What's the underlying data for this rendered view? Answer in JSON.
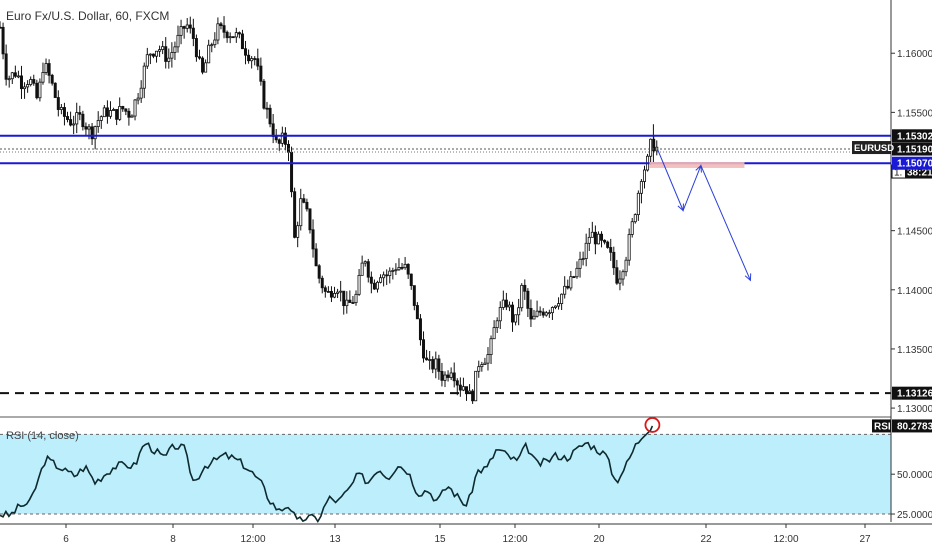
{
  "header": {
    "title": "Euro Fx/U.S. Dollar, 60, FXCM"
  },
  "rsi_panel": {
    "title": "RSI (14, close)",
    "tag_label": "RSI",
    "tag_value": "80.2783"
  },
  "colors": {
    "candle": "#111111",
    "resistance_line": "#1a1ad6",
    "arrow": "#2b3fd8",
    "target_zone": "#f2b9b9",
    "rsi_fill": "#bdeefc",
    "rsi_line": "#0e2a2e",
    "circle": "#d61a1a",
    "price_tag": "#111111",
    "level_tag": "#1a1ad6"
  },
  "chart_data": [
    {
      "type": "candlestick",
      "title": "Euro Fx/U.S. Dollar, 60, FXCM",
      "symbol": "EURUSD",
      "ylim": [
        1.1295,
        1.1645
      ],
      "y_ticks": [
        "1.16000",
        "1.15500",
        "1.14500",
        "1.14000",
        "1.13500",
        "1.13000"
      ],
      "x_ticks": [
        "6",
        "8",
        "12:00",
        "13",
        "15",
        "12:00",
        "20",
        "22",
        "12:00",
        "27"
      ],
      "price_path": [
        {
          "t": 0,
          "p": 1.1622
        },
        {
          "t": 7,
          "p": 1.1578
        },
        {
          "t": 16,
          "p": 1.1584
        },
        {
          "t": 22,
          "p": 1.1575
        },
        {
          "t": 30,
          "p": 1.1578
        },
        {
          "t": 38,
          "p": 1.156
        },
        {
          "t": 44,
          "p": 1.1592
        },
        {
          "t": 52,
          "p": 1.1575
        },
        {
          "t": 60,
          "p": 1.155
        },
        {
          "t": 72,
          "p": 1.1542
        },
        {
          "t": 82,
          "p": 1.1546
        },
        {
          "t": 92,
          "p": 1.1532
        },
        {
          "t": 100,
          "p": 1.1545
        },
        {
          "t": 108,
          "p": 1.1551
        },
        {
          "t": 116,
          "p": 1.1548
        },
        {
          "t": 124,
          "p": 1.1553
        },
        {
          "t": 132,
          "p": 1.1548
        },
        {
          "t": 140,
          "p": 1.1568
        },
        {
          "t": 150,
          "p": 1.16
        },
        {
          "t": 160,
          "p": 1.1605
        },
        {
          "t": 170,
          "p": 1.1595
        },
        {
          "t": 180,
          "p": 1.1612
        },
        {
          "t": 188,
          "p": 1.1625
        },
        {
          "t": 196,
          "p": 1.1612
        },
        {
          "t": 204,
          "p": 1.158
        },
        {
          "t": 212,
          "p": 1.1605
        },
        {
          "t": 220,
          "p": 1.162
        },
        {
          "t": 230,
          "p": 1.1618
        },
        {
          "t": 240,
          "p": 1.1614
        },
        {
          "t": 250,
          "p": 1.16
        },
        {
          "t": 258,
          "p": 1.1595
        },
        {
          "t": 266,
          "p": 1.156
        },
        {
          "t": 274,
          "p": 1.154
        },
        {
          "t": 280,
          "p": 1.152
        },
        {
          "t": 286,
          "p": 1.1528
        },
        {
          "t": 292,
          "p": 1.152
        },
        {
          "t": 297,
          "p": 1.144
        },
        {
          "t": 304,
          "p": 1.1475
        },
        {
          "t": 312,
          "p": 1.146
        },
        {
          "t": 320,
          "p": 1.1415
        },
        {
          "t": 330,
          "p": 1.1395
        },
        {
          "t": 340,
          "p": 1.1405
        },
        {
          "t": 350,
          "p": 1.1385
        },
        {
          "t": 360,
          "p": 1.1395
        },
        {
          "t": 368,
          "p": 1.143
        },
        {
          "t": 376,
          "p": 1.1402
        },
        {
          "t": 384,
          "p": 1.1415
        },
        {
          "t": 392,
          "p": 1.1412
        },
        {
          "t": 400,
          "p": 1.142
        },
        {
          "t": 410,
          "p": 1.1418
        },
        {
          "t": 418,
          "p": 1.1392
        },
        {
          "t": 424,
          "p": 1.136
        },
        {
          "t": 432,
          "p": 1.1335
        },
        {
          "t": 440,
          "p": 1.1337
        },
        {
          "t": 448,
          "p": 1.1325
        },
        {
          "t": 456,
          "p": 1.1335
        },
        {
          "t": 464,
          "p": 1.1318
        },
        {
          "t": 470,
          "p": 1.132
        },
        {
          "t": 476,
          "p": 1.1306
        },
        {
          "t": 484,
          "p": 1.134
        },
        {
          "t": 494,
          "p": 1.1345
        },
        {
          "t": 502,
          "p": 1.1378
        },
        {
          "t": 512,
          "p": 1.139
        },
        {
          "t": 520,
          "p": 1.137
        },
        {
          "t": 528,
          "p": 1.1405
        },
        {
          "t": 536,
          "p": 1.1372
        },
        {
          "t": 546,
          "p": 1.1382
        },
        {
          "t": 556,
          "p": 1.1385
        },
        {
          "t": 566,
          "p": 1.1395
        },
        {
          "t": 574,
          "p": 1.1402
        },
        {
          "t": 582,
          "p": 1.1415
        },
        {
          "t": 590,
          "p": 1.143
        },
        {
          "t": 596,
          "p": 1.1448
        },
        {
          "t": 606,
          "p": 1.144
        },
        {
          "t": 616,
          "p": 1.143
        },
        {
          "t": 624,
          "p": 1.1408
        },
        {
          "t": 632,
          "p": 1.1428
        },
        {
          "t": 640,
          "p": 1.146
        },
        {
          "t": 648,
          "p": 1.1498
        },
        {
          "t": 654,
          "p": 1.1508
        },
        {
          "t": 658,
          "p": 1.1525
        },
        {
          "t": 661,
          "p": 1.1522
        },
        {
          "t": 664,
          "p": 1.1519
        }
      ],
      "lines": {
        "resistance_upper": 1.15302,
        "resistance_lower": 1.1507,
        "current_price": 1.1519,
        "support_dashed": 1.13126
      },
      "price_labels": [
        "1.15302",
        "1.15190",
        "1.15070",
        "1.13126"
      ],
      "symbol_label": "EURUSD",
      "countdown_label": "38:21",
      "countdown_prefix": "1.",
      "target_zone": {
        "t_start": 656,
        "t_end": 752,
        "p_top": 1.1508,
        "p_bottom": 1.1503
      },
      "projection_path": [
        {
          "t": 664,
          "p": 1.1519
        },
        {
          "t": 690,
          "p": 1.1467
        },
        {
          "t": 708,
          "p": 1.1505
        },
        {
          "t": 758,
          "p": 1.1408
        }
      ]
    },
    {
      "type": "line",
      "title": "RSI (14, close)",
      "ylim": [
        20,
        84
      ],
      "y_ticks": [
        "50.0000",
        "25.0000"
      ],
      "bands": [
        75,
        25
      ],
      "current_value": 80.2783,
      "values_path": [
        {
          "t": 0,
          "v": 25
        },
        {
          "t": 10,
          "v": 24
        },
        {
          "t": 20,
          "v": 30
        },
        {
          "t": 30,
          "v": 32
        },
        {
          "t": 38,
          "v": 45
        },
        {
          "t": 46,
          "v": 60
        },
        {
          "t": 56,
          "v": 56
        },
        {
          "t": 66,
          "v": 52
        },
        {
          "t": 76,
          "v": 49
        },
        {
          "t": 86,
          "v": 55
        },
        {
          "t": 96,
          "v": 45
        },
        {
          "t": 106,
          "v": 50
        },
        {
          "t": 116,
          "v": 55
        },
        {
          "t": 126,
          "v": 56
        },
        {
          "t": 136,
          "v": 55
        },
        {
          "t": 146,
          "v": 70
        },
        {
          "t": 156,
          "v": 65
        },
        {
          "t": 166,
          "v": 60
        },
        {
          "t": 176,
          "v": 68
        },
        {
          "t": 186,
          "v": 66
        },
        {
          "t": 196,
          "v": 44
        },
        {
          "t": 206,
          "v": 55
        },
        {
          "t": 216,
          "v": 58
        },
        {
          "t": 226,
          "v": 62
        },
        {
          "t": 236,
          "v": 60
        },
        {
          "t": 246,
          "v": 56
        },
        {
          "t": 256,
          "v": 50
        },
        {
          "t": 264,
          "v": 44
        },
        {
          "t": 272,
          "v": 34
        },
        {
          "t": 282,
          "v": 27
        },
        {
          "t": 292,
          "v": 31
        },
        {
          "t": 300,
          "v": 20
        },
        {
          "t": 310,
          "v": 23
        },
        {
          "t": 322,
          "v": 22
        },
        {
          "t": 332,
          "v": 35
        },
        {
          "t": 342,
          "v": 33
        },
        {
          "t": 352,
          "v": 40
        },
        {
          "t": 362,
          "v": 50
        },
        {
          "t": 372,
          "v": 45
        },
        {
          "t": 382,
          "v": 54
        },
        {
          "t": 392,
          "v": 48
        },
        {
          "t": 402,
          "v": 56
        },
        {
          "t": 412,
          "v": 52
        },
        {
          "t": 422,
          "v": 38
        },
        {
          "t": 432,
          "v": 40
        },
        {
          "t": 442,
          "v": 33
        },
        {
          "t": 452,
          "v": 43
        },
        {
          "t": 462,
          "v": 36
        },
        {
          "t": 472,
          "v": 30
        },
        {
          "t": 482,
          "v": 52
        },
        {
          "t": 492,
          "v": 54
        },
        {
          "t": 502,
          "v": 66
        },
        {
          "t": 512,
          "v": 62
        },
        {
          "t": 522,
          "v": 58
        },
        {
          "t": 532,
          "v": 68
        },
        {
          "t": 542,
          "v": 56
        },
        {
          "t": 552,
          "v": 58
        },
        {
          "t": 562,
          "v": 62
        },
        {
          "t": 572,
          "v": 60
        },
        {
          "t": 582,
          "v": 65
        },
        {
          "t": 592,
          "v": 70
        },
        {
          "t": 602,
          "v": 66
        },
        {
          "t": 612,
          "v": 62
        },
        {
          "t": 622,
          "v": 45
        },
        {
          "t": 632,
          "v": 55
        },
        {
          "t": 642,
          "v": 68
        },
        {
          "t": 652,
          "v": 77
        },
        {
          "t": 659,
          "v": 80.2783
        }
      ]
    }
  ]
}
